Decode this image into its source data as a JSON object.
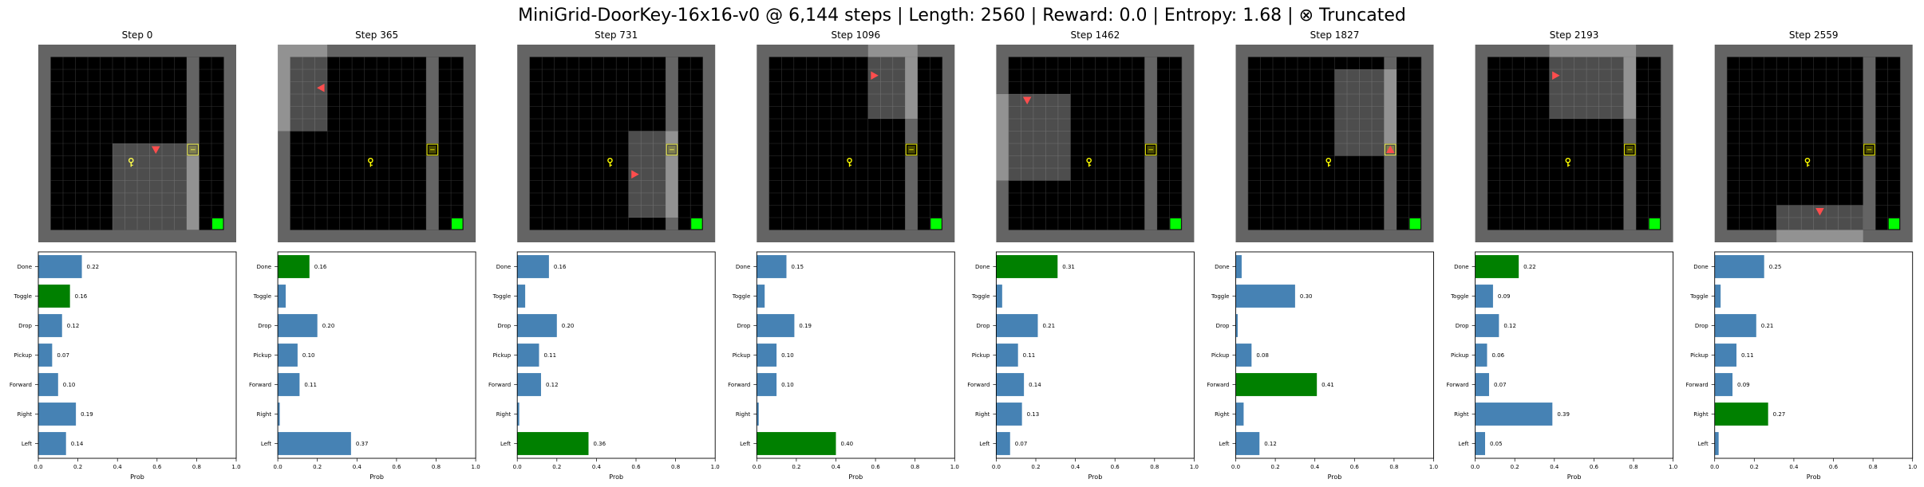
{
  "title": "MiniGrid-DoorKey-16x16-v0 @ 6,144 steps | Length: 2560 | Reward: 0.0 | Entropy: 1.68 | ⊗ Truncated",
  "colors": {
    "wall": "#646464",
    "floor": "#000000",
    "grid_line": "#333333",
    "view_overlay": "#ffffff",
    "agent": "#ff4d4d",
    "key": "#ffff00",
    "door": "#8c8c00",
    "goal": "#00ff00",
    "bar_default": "#4682b4",
    "bar_selected": "#008000"
  },
  "chart_data": [
    {
      "type": "bar",
      "orientation": "horizontal",
      "title": "Step 0",
      "xlabel": "Prob",
      "xlim": [
        0,
        1
      ],
      "xticks": [
        "0.0",
        "0.2",
        "0.4",
        "0.6",
        "0.8",
        "1.0"
      ],
      "categories": [
        "Done",
        "Toggle",
        "Drop",
        "Pickup",
        "Forward",
        "Right",
        "Left"
      ],
      "values": [
        0.22,
        0.16,
        0.12,
        0.07,
        0.1,
        0.19,
        0.14
      ],
      "labels": [
        "0.22",
        "0.16",
        "0.12",
        "0.07",
        "0.10",
        "0.19",
        "0.14"
      ],
      "selected": "Toggle",
      "show_labels": [
        true,
        true,
        true,
        true,
        true,
        true,
        true
      ]
    },
    {
      "type": "bar",
      "orientation": "horizontal",
      "title": "Step 365",
      "xlabel": "Prob",
      "xlim": [
        0,
        1
      ],
      "xticks": [
        "0.0",
        "0.2",
        "0.4",
        "0.6",
        "0.8",
        "1.0"
      ],
      "categories": [
        "Done",
        "Toggle",
        "Drop",
        "Pickup",
        "Forward",
        "Right",
        "Left"
      ],
      "values": [
        0.16,
        0.04,
        0.2,
        0.1,
        0.11,
        0.01,
        0.37
      ],
      "labels": [
        "0.16",
        "",
        "0.20",
        "0.10",
        "0.11",
        "",
        "0.37"
      ],
      "selected": "Done",
      "show_labels": [
        true,
        false,
        true,
        true,
        true,
        false,
        true
      ]
    },
    {
      "type": "bar",
      "orientation": "horizontal",
      "title": "Step 731",
      "xlabel": "Prob",
      "xlim": [
        0,
        1
      ],
      "xticks": [
        "0.0",
        "0.2",
        "0.4",
        "0.6",
        "0.8",
        "1.0"
      ],
      "categories": [
        "Done",
        "Toggle",
        "Drop",
        "Pickup",
        "Forward",
        "Right",
        "Left"
      ],
      "values": [
        0.16,
        0.04,
        0.2,
        0.11,
        0.12,
        0.01,
        0.36
      ],
      "labels": [
        "0.16",
        "",
        "0.20",
        "0.11",
        "0.12",
        "",
        "0.36"
      ],
      "selected": "Left",
      "show_labels": [
        true,
        false,
        true,
        true,
        true,
        false,
        true
      ]
    },
    {
      "type": "bar",
      "orientation": "horizontal",
      "title": "Step 1096",
      "xlabel": "Prob",
      "xlim": [
        0,
        1
      ],
      "xticks": [
        "0.0",
        "0.2",
        "0.4",
        "0.6",
        "0.8",
        "1.0"
      ],
      "categories": [
        "Done",
        "Toggle",
        "Drop",
        "Pickup",
        "Forward",
        "Right",
        "Left"
      ],
      "values": [
        0.15,
        0.04,
        0.19,
        0.1,
        0.1,
        0.01,
        0.4
      ],
      "labels": [
        "0.15",
        "",
        "0.19",
        "0.10",
        "0.10",
        "",
        "0.40"
      ],
      "selected": "Left",
      "show_labels": [
        true,
        false,
        true,
        true,
        true,
        false,
        true
      ]
    },
    {
      "type": "bar",
      "orientation": "horizontal",
      "title": "Step 1462",
      "xlabel": "Prob",
      "xlim": [
        0,
        1
      ],
      "xticks": [
        "0.0",
        "0.2",
        "0.4",
        "0.6",
        "0.8",
        "1.0"
      ],
      "categories": [
        "Done",
        "Toggle",
        "Drop",
        "Pickup",
        "Forward",
        "Right",
        "Left"
      ],
      "values": [
        0.31,
        0.03,
        0.21,
        0.11,
        0.14,
        0.13,
        0.07
      ],
      "labels": [
        "0.31",
        "",
        "0.21",
        "0.11",
        "0.14",
        "0.13",
        "0.07"
      ],
      "selected": "Done",
      "show_labels": [
        true,
        false,
        true,
        true,
        true,
        true,
        true
      ]
    },
    {
      "type": "bar",
      "orientation": "horizontal",
      "title": "Step 1827",
      "xlabel": "Prob",
      "xlim": [
        0,
        1
      ],
      "xticks": [
        "0.0",
        "0.2",
        "0.4",
        "0.6",
        "0.8",
        "1.0"
      ],
      "categories": [
        "Done",
        "Toggle",
        "Drop",
        "Pickup",
        "Forward",
        "Right",
        "Left"
      ],
      "values": [
        0.03,
        0.3,
        0.01,
        0.08,
        0.41,
        0.04,
        0.12
      ],
      "labels": [
        "",
        "0.30",
        "",
        "0.08",
        "0.41",
        "",
        "0.12"
      ],
      "selected": "Forward",
      "show_labels": [
        false,
        true,
        false,
        true,
        true,
        false,
        true
      ]
    },
    {
      "type": "bar",
      "orientation": "horizontal",
      "title": "Step 2193",
      "xlabel": "Prob",
      "xlim": [
        0,
        1
      ],
      "xticks": [
        "0.0",
        "0.2",
        "0.4",
        "0.6",
        "0.8",
        "1.0"
      ],
      "categories": [
        "Done",
        "Toggle",
        "Drop",
        "Pickup",
        "Forward",
        "Right",
        "Left"
      ],
      "values": [
        0.22,
        0.09,
        0.12,
        0.06,
        0.07,
        0.39,
        0.05
      ],
      "labels": [
        "0.22",
        "0.09",
        "0.12",
        "0.06",
        "0.07",
        "0.39",
        "0.05"
      ],
      "selected": "Done",
      "show_labels": [
        true,
        true,
        true,
        true,
        true,
        true,
        true
      ]
    },
    {
      "type": "bar",
      "orientation": "horizontal",
      "title": "Step 2559",
      "xlabel": "Prob",
      "xlim": [
        0,
        1
      ],
      "xticks": [
        "0.0",
        "0.2",
        "0.4",
        "0.6",
        "0.8",
        "1.0"
      ],
      "categories": [
        "Done",
        "Toggle",
        "Drop",
        "Pickup",
        "Forward",
        "Right",
        "Left"
      ],
      "values": [
        0.25,
        0.03,
        0.21,
        0.11,
        0.09,
        0.27,
        0.02
      ],
      "labels": [
        "0.25",
        "",
        "0.21",
        "0.11",
        "0.09",
        "0.27",
        ""
      ],
      "selected": "Right",
      "show_labels": [
        true,
        false,
        true,
        true,
        true,
        true,
        false
      ]
    }
  ],
  "grid_frames": [
    {
      "agent": {
        "col": 9,
        "row": 8,
        "dir": "down"
      },
      "view": {
        "col0": 6,
        "row0": 8,
        "cols": 7,
        "rows": 7
      }
    },
    {
      "agent": {
        "col": 3,
        "row": 3,
        "dir": "left"
      },
      "view": {
        "col0": 0,
        "row0": 0,
        "cols": 4,
        "rows": 7
      }
    },
    {
      "agent": {
        "col": 9,
        "row": 10,
        "dir": "right"
      },
      "view": {
        "col0": 9,
        "row0": 7,
        "cols": 4,
        "rows": 7
      }
    },
    {
      "agent": {
        "col": 9,
        "row": 2,
        "dir": "right"
      },
      "view": {
        "col0": 9,
        "row0": 0,
        "cols": 4,
        "rows": 6
      }
    },
    {
      "agent": {
        "col": 2,
        "row": 4,
        "dir": "down"
      },
      "view": {
        "col0": 0,
        "row0": 4,
        "cols": 6,
        "rows": 7
      }
    },
    {
      "agent": {
        "col": 12,
        "row": 8,
        "dir": "up"
      },
      "view": {
        "col0": 8,
        "row0": 2,
        "cols": 5,
        "rows": 7
      }
    },
    {
      "agent": {
        "col": 6,
        "row": 2,
        "dir": "right"
      },
      "view": {
        "col0": 6,
        "row0": 0,
        "cols": 7,
        "rows": 6
      }
    },
    {
      "agent": {
        "col": 8,
        "row": 13,
        "dir": "down"
      },
      "view": {
        "col0": 5,
        "row0": 13,
        "cols": 7,
        "rows": 3
      }
    }
  ]
}
